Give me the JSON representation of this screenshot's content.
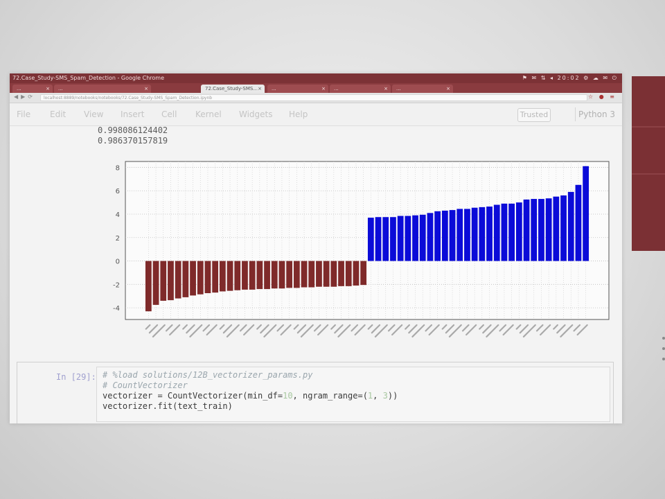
{
  "window": {
    "title": "72.Case_Study-SMS_Spam_Detection - Google Chrome",
    "tray": "⚑ ✉ ⇅ ◂ 20:02 ⚙ ☁ ✉ ⏻"
  },
  "tabs": [
    {
      "label": "...",
      "active": false
    },
    {
      "label": "...",
      "active": false
    },
    {
      "label": "72.Case_Study-SMS...",
      "active": true
    },
    {
      "label": "...",
      "active": false
    },
    {
      "label": "...",
      "active": false
    },
    {
      "label": "...",
      "active": false
    }
  ],
  "address_bar": {
    "url": "localhost:8889/notebooks/notebooks/72.Case_Study-SMS_Spam_Detection.ipynb"
  },
  "menu": {
    "items": [
      "File",
      "Edit",
      "View",
      "Insert",
      "Cell",
      "Kernel",
      "Widgets",
      "Help"
    ],
    "trusted": "Trusted",
    "kernel": "Python 3"
  },
  "output": {
    "line1": "0.998086124402",
    "line2": "0.986370157819"
  },
  "chart_data": {
    "type": "bar",
    "ylim": [
      -5,
      8.5
    ],
    "yticks": [
      -4,
      -2,
      0,
      2,
      4,
      6,
      8
    ],
    "negative_color": "#7f2a2a",
    "positive_color": "#0b0bd8",
    "grid": "dotted",
    "values": [
      -4.3,
      -3.75,
      -3.4,
      -3.35,
      -3.2,
      -3.1,
      -2.95,
      -2.85,
      -2.75,
      -2.7,
      -2.6,
      -2.55,
      -2.5,
      -2.45,
      -2.45,
      -2.4,
      -2.4,
      -2.35,
      -2.35,
      -2.3,
      -2.3,
      -2.25,
      -2.25,
      -2.2,
      -2.2,
      -2.2,
      -2.15,
      -2.15,
      -2.1,
      -2.05,
      3.7,
      3.75,
      3.75,
      3.75,
      3.85,
      3.85,
      3.9,
      3.95,
      4.1,
      4.25,
      4.3,
      4.35,
      4.45,
      4.45,
      4.55,
      4.6,
      4.65,
      4.8,
      4.9,
      4.9,
      5.0,
      5.25,
      5.3,
      5.3,
      5.35,
      5.5,
      5.6,
      5.9,
      6.5,
      8.1
    ]
  },
  "code_cell": {
    "prompt": "In [29]:",
    "line1": "# %load solutions/12B_vectorizer_params.py",
    "line2": "# CountVectorizer",
    "line3_a": "vectorizer = CountVectorizer(min_df=",
    "line3_b": "10",
    "line3_c": ", ngram_range=(",
    "line3_d": "1",
    "line3_e": ", ",
    "line3_f": "3",
    "line3_g": "))",
    "line4": "vectorizer.fit(text_train)"
  }
}
